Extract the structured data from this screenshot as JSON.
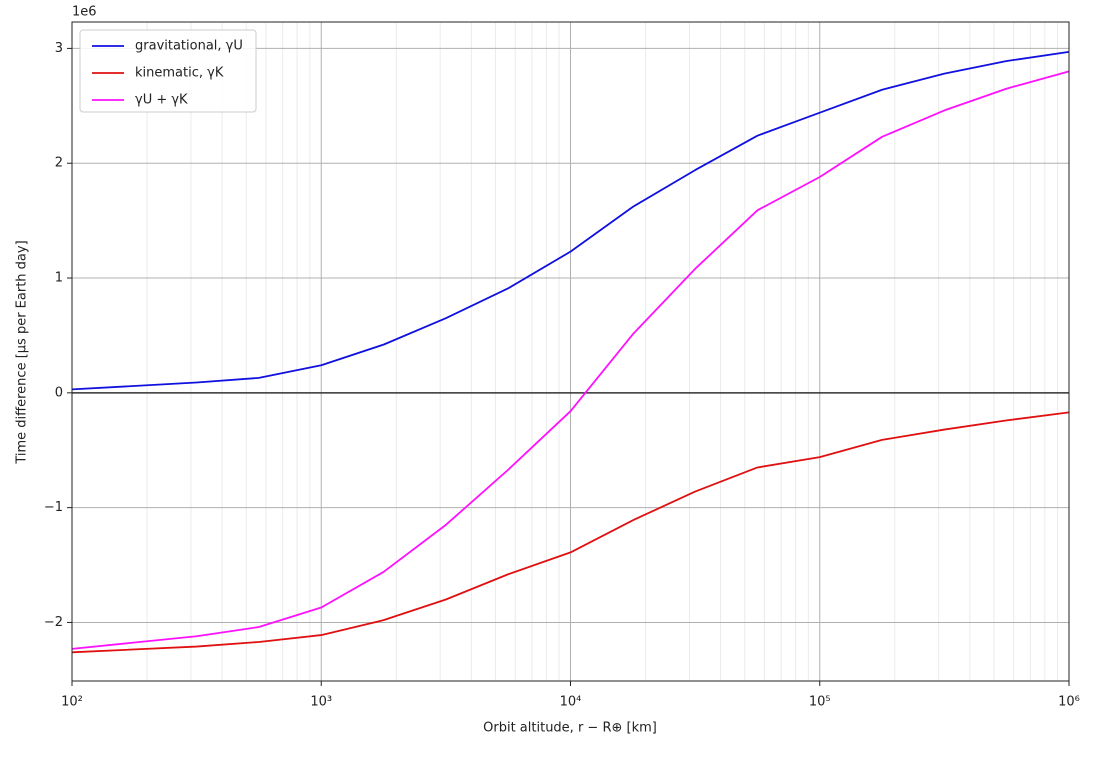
{
  "chart_data": {
    "type": "line",
    "x_label": "Orbit altitude, r − R⊕ [km]",
    "y_label": "Time difference [μs per Earth day]",
    "y_offset_label": "1e6",
    "x": [
      100,
      316,
      562,
      1000,
      1778,
      3162,
      5623,
      10000,
      17783,
      31623,
      56234,
      100000,
      177828,
      316228,
      562341,
      1000000
    ],
    "series": [
      {
        "name": "gravitational, γU",
        "color": "#1010e0",
        "values": [
          0.03,
          0.09,
          0.13,
          0.24,
          0.42,
          0.65,
          0.91,
          1.23,
          1.62,
          1.94,
          2.24,
          2.44,
          2.64,
          2.78,
          2.89,
          2.97
        ]
      },
      {
        "name": "kinematic, γK",
        "color": "#e01010",
        "values": [
          -2.26,
          -2.21,
          -2.17,
          -2.11,
          -1.98,
          -1.8,
          -1.58,
          -1.39,
          -1.11,
          -0.86,
          -0.65,
          -0.56,
          -0.41,
          -0.32,
          -0.24,
          -0.17
        ]
      },
      {
        "name": "γU + γK",
        "color": "#ff10ff",
        "values": [
          -2.23,
          -2.12,
          -2.04,
          -1.87,
          -1.56,
          -1.15,
          -0.67,
          -0.16,
          0.51,
          1.08,
          1.59,
          1.88,
          2.23,
          2.46,
          2.65,
          2.8
        ]
      }
    ],
    "xlim": [
      100,
      1000000
    ],
    "xticks": [
      {
        "value": 100,
        "label": "10²"
      },
      {
        "value": 1000,
        "label": "10³"
      },
      {
        "value": 10000,
        "label": "10⁴"
      },
      {
        "value": 100000,
        "label": "10⁵"
      },
      {
        "value": 1000000,
        "label": "10⁶"
      }
    ],
    "ylim": [
      -2.51,
      3.23
    ],
    "yticks": [
      {
        "value": -2,
        "label": "−2"
      },
      {
        "value": -1,
        "label": "−1"
      },
      0,
      1,
      2,
      3
    ],
    "x_log": true,
    "grid": true,
    "minor_grid": true,
    "zero_line": true,
    "legend": "upper left"
  }
}
